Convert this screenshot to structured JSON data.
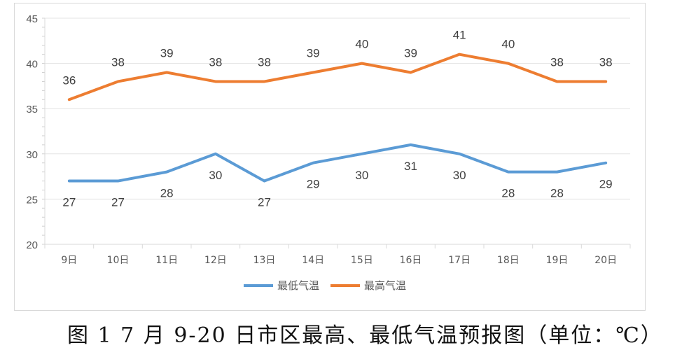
{
  "chart_data": {
    "type": "line",
    "title": "",
    "caption": "图 1  7 月 9-20 日市区最高、最低气温预报图（单位：℃）",
    "xlabel": "",
    "ylabel": "",
    "categories": [
      "9日",
      "10日",
      "11日",
      "12日",
      "13日",
      "14日",
      "15日",
      "16日",
      "17日",
      "18日",
      "19日",
      "20日"
    ],
    "series": [
      {
        "name": "最低气温",
        "color": "#5b9bd5",
        "values": [
          27,
          27,
          28,
          30,
          27,
          29,
          30,
          31,
          30,
          28,
          28,
          29
        ],
        "label_position": "below"
      },
      {
        "name": "最高气温",
        "color": "#ed7d31",
        "values": [
          36,
          38,
          39,
          38,
          38,
          39,
          40,
          39,
          41,
          40,
          38,
          38
        ],
        "label_position": "above"
      }
    ],
    "ylim": [
      20,
      45
    ],
    "yticks": [
      20,
      25,
      30,
      35,
      40,
      45
    ],
    "grid": true,
    "legend_position": "bottom"
  },
  "legend": {
    "items": [
      {
        "label": "最低气温",
        "color": "#5b9bd5"
      },
      {
        "label": "最高气温",
        "color": "#ed7d31"
      }
    ]
  },
  "caption": "图 1  7 月 9-20 日市区最高、最低气温预报图（单位：℃）"
}
